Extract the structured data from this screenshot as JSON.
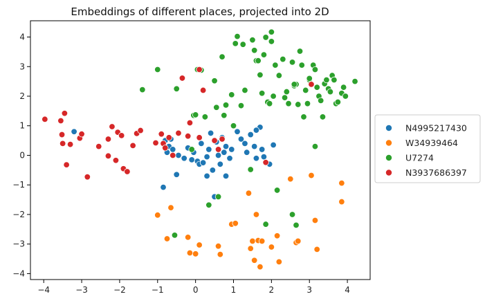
{
  "chart_data": {
    "type": "scatter",
    "title": "Embeddings of different places, projected into 2D",
    "xlabel": "",
    "ylabel": "",
    "xlim": [
      -4.35,
      4.6
    ],
    "ylim": [
      -4.2,
      4.55
    ],
    "xticks": [
      -4,
      -3,
      -2,
      -1,
      0,
      1,
      2,
      3,
      4
    ],
    "yticks": [
      -4,
      -3,
      -2,
      -1,
      0,
      1,
      2,
      3,
      4
    ],
    "grid": false,
    "legend_position": "right",
    "series": [
      {
        "name": "N4995217430",
        "color": "#1f77b4",
        "points": [
          [
            -3.2,
            0.8
          ],
          [
            -0.85,
            -1.08
          ],
          [
            -0.8,
            0.5
          ],
          [
            -0.65,
            0.55
          ],
          [
            -0.7,
            0.3
          ],
          [
            -0.75,
            0.1
          ],
          [
            -0.6,
            0.2
          ],
          [
            -0.5,
            -0.65
          ],
          [
            -0.45,
            0.0
          ],
          [
            -0.3,
            -0.1
          ],
          [
            -0.2,
            0.25
          ],
          [
            -0.1,
            -0.15
          ],
          [
            -0.05,
            0.1
          ],
          [
            0.05,
            -0.2
          ],
          [
            0.1,
            -0.3
          ],
          [
            0.15,
            0.4
          ],
          [
            0.2,
            -0.25
          ],
          [
            0.3,
            -0.05
          ],
          [
            0.3,
            -0.7
          ],
          [
            0.35,
            0.2
          ],
          [
            0.4,
            0.75
          ],
          [
            0.45,
            -0.5
          ],
          [
            0.5,
            -1.4
          ],
          [
            0.55,
            0.45
          ],
          [
            0.6,
            0.0
          ],
          [
            0.65,
            -0.3
          ],
          [
            0.7,
            0.6
          ],
          [
            0.75,
            0.1
          ],
          [
            0.8,
            0.3
          ],
          [
            0.8,
            -0.7
          ],
          [
            0.9,
            -0.1
          ],
          [
            0.95,
            0.2
          ],
          [
            1.1,
            0.8
          ],
          [
            1.2,
            0.55
          ],
          [
            1.3,
            0.4
          ],
          [
            1.35,
            0.1
          ],
          [
            1.45,
            0.7
          ],
          [
            1.55,
            0.3
          ],
          [
            1.6,
            -0.1
          ],
          [
            1.7,
            0.95
          ],
          [
            1.75,
            0.2
          ],
          [
            1.8,
            -0.05
          ],
          [
            1.95,
            -0.3
          ],
          [
            2.05,
            0.35
          ],
          [
            1.6,
            0.85
          ]
        ]
      },
      {
        "name": "W34939464",
        "color": "#ff7f0e",
        "points": [
          [
            -1.0,
            -2.02
          ],
          [
            -0.75,
            -2.82
          ],
          [
            -0.65,
            -1.77
          ],
          [
            -0.2,
            -2.77
          ],
          [
            -0.15,
            -3.3
          ],
          [
            0.0,
            -3.33
          ],
          [
            0.1,
            -3.03
          ],
          [
            0.6,
            -3.07
          ],
          [
            0.65,
            -3.35
          ],
          [
            0.95,
            -2.33
          ],
          [
            1.05,
            -2.3
          ],
          [
            1.4,
            -1.28
          ],
          [
            1.45,
            -3.15
          ],
          [
            1.5,
            -2.9
          ],
          [
            1.55,
            -3.55
          ],
          [
            1.6,
            -2.0
          ],
          [
            1.65,
            -2.88
          ],
          [
            1.7,
            -3.77
          ],
          [
            1.75,
            -2.9
          ],
          [
            2.0,
            -3.1
          ],
          [
            2.15,
            -2.72
          ],
          [
            2.2,
            -3.6
          ],
          [
            2.5,
            -0.8
          ],
          [
            2.65,
            -2.95
          ],
          [
            2.7,
            -2.9
          ],
          [
            3.05,
            -0.68
          ],
          [
            3.15,
            -2.2
          ],
          [
            3.2,
            -3.18
          ],
          [
            3.85,
            -0.94
          ],
          [
            3.85,
            -1.57
          ]
        ]
      },
      {
        "name": "U7274",
        "color": "#2ca02c",
        "points": [
          [
            -1.4,
            2.22
          ],
          [
            -1.0,
            2.9
          ],
          [
            -0.5,
            2.25
          ],
          [
            -0.55,
            -2.7
          ],
          [
            -0.1,
            0.2
          ],
          [
            -0.05,
            1.35
          ],
          [
            0.0,
            1.37
          ],
          [
            0.05,
            2.9
          ],
          [
            0.15,
            2.88
          ],
          [
            0.25,
            1.3
          ],
          [
            0.35,
            -1.68
          ],
          [
            0.5,
            2.52
          ],
          [
            0.55,
            1.62
          ],
          [
            0.6,
            -1.4
          ],
          [
            0.7,
            3.33
          ],
          [
            0.75,
            1.35
          ],
          [
            0.8,
            1.7
          ],
          [
            0.95,
            2.05
          ],
          [
            1.0,
            1.0
          ],
          [
            1.05,
            3.78
          ],
          [
            1.1,
            4.02
          ],
          [
            1.2,
            1.68
          ],
          [
            1.25,
            3.75
          ],
          [
            1.3,
            2.2
          ],
          [
            1.45,
            -0.48
          ],
          [
            1.5,
            3.9
          ],
          [
            1.55,
            3.55
          ],
          [
            1.6,
            3.2
          ],
          [
            1.65,
            3.2
          ],
          [
            1.7,
            2.72
          ],
          [
            1.75,
            2.1
          ],
          [
            1.8,
            3.4
          ],
          [
            1.85,
            3.99
          ],
          [
            1.9,
            1.8
          ],
          [
            1.95,
            1.75
          ],
          [
            2.0,
            3.85
          ],
          [
            2.0,
            4.17
          ],
          [
            2.05,
            2.0
          ],
          [
            2.1,
            3.05
          ],
          [
            2.15,
            -1.18
          ],
          [
            2.2,
            2.7
          ],
          [
            2.3,
            3.25
          ],
          [
            2.35,
            1.95
          ],
          [
            2.4,
            2.15
          ],
          [
            2.45,
            1.75
          ],
          [
            2.55,
            3.15
          ],
          [
            2.6,
            2.35
          ],
          [
            2.65,
            2.4
          ],
          [
            2.7,
            1.72
          ],
          [
            2.75,
            3.52
          ],
          [
            2.8,
            3.05
          ],
          [
            2.85,
            1.3
          ],
          [
            2.9,
            2.2
          ],
          [
            2.95,
            1.75
          ],
          [
            3.0,
            2.55
          ],
          [
            3.1,
            3.05
          ],
          [
            3.15,
            2.9
          ],
          [
            3.2,
            2.3
          ],
          [
            3.25,
            2.0
          ],
          [
            3.3,
            1.85
          ],
          [
            3.35,
            1.3
          ],
          [
            3.4,
            2.42
          ],
          [
            3.45,
            2.55
          ],
          [
            3.5,
            2.25
          ],
          [
            3.55,
            2.15
          ],
          [
            3.6,
            2.7
          ],
          [
            3.65,
            2.55
          ],
          [
            3.7,
            1.75
          ],
          [
            3.75,
            1.8
          ],
          [
            3.85,
            2.1
          ],
          [
            3.9,
            2.3
          ],
          [
            3.95,
            2.0
          ],
          [
            4.2,
            2.5
          ],
          [
            2.55,
            -2.0
          ],
          [
            2.65,
            -2.36
          ],
          [
            3.15,
            0.3
          ],
          [
            1.85,
            -2.33
          ],
          [
            2.6,
            2.4
          ],
          [
            3.0,
            2.6
          ]
        ]
      },
      {
        "name": "N3937686397",
        "color": "#d62728",
        "points": [
          [
            -3.97,
            1.22
          ],
          [
            -3.55,
            1.17
          ],
          [
            -3.52,
            0.7
          ],
          [
            -3.45,
            1.42
          ],
          [
            -3.4,
            -0.32
          ],
          [
            -3.5,
            0.4
          ],
          [
            -3.3,
            0.37
          ],
          [
            -3.05,
            0.58
          ],
          [
            -3.0,
            0.72
          ],
          [
            -2.85,
            -0.73
          ],
          [
            -2.55,
            0.3
          ],
          [
            -2.3,
            0.55
          ],
          [
            -2.3,
            -0.02
          ],
          [
            -2.2,
            0.97
          ],
          [
            -2.1,
            -0.17
          ],
          [
            -2.05,
            0.78
          ],
          [
            -1.95,
            0.67
          ],
          [
            -1.9,
            -0.45
          ],
          [
            -1.8,
            -0.55
          ],
          [
            -1.65,
            0.33
          ],
          [
            -1.55,
            0.74
          ],
          [
            -1.45,
            0.84
          ],
          [
            -1.05,
            0.42
          ],
          [
            -0.9,
            0.72
          ],
          [
            -0.85,
            0.4
          ],
          [
            -0.8,
            0.25
          ],
          [
            -0.7,
            0.6
          ],
          [
            -0.45,
            0.75
          ],
          [
            -0.35,
            2.61
          ],
          [
            -0.2,
            0.65
          ],
          [
            -0.15,
            1.1
          ],
          [
            0.1,
            0.6
          ],
          [
            0.1,
            2.9
          ],
          [
            0.2,
            2.2
          ],
          [
            0.5,
            0.5
          ],
          [
            0.6,
            0.2
          ],
          [
            0.7,
            0.55
          ],
          [
            1.85,
            -0.24
          ],
          [
            3.05,
            2.4
          ],
          [
            -0.6,
            0.0
          ]
        ]
      }
    ]
  }
}
